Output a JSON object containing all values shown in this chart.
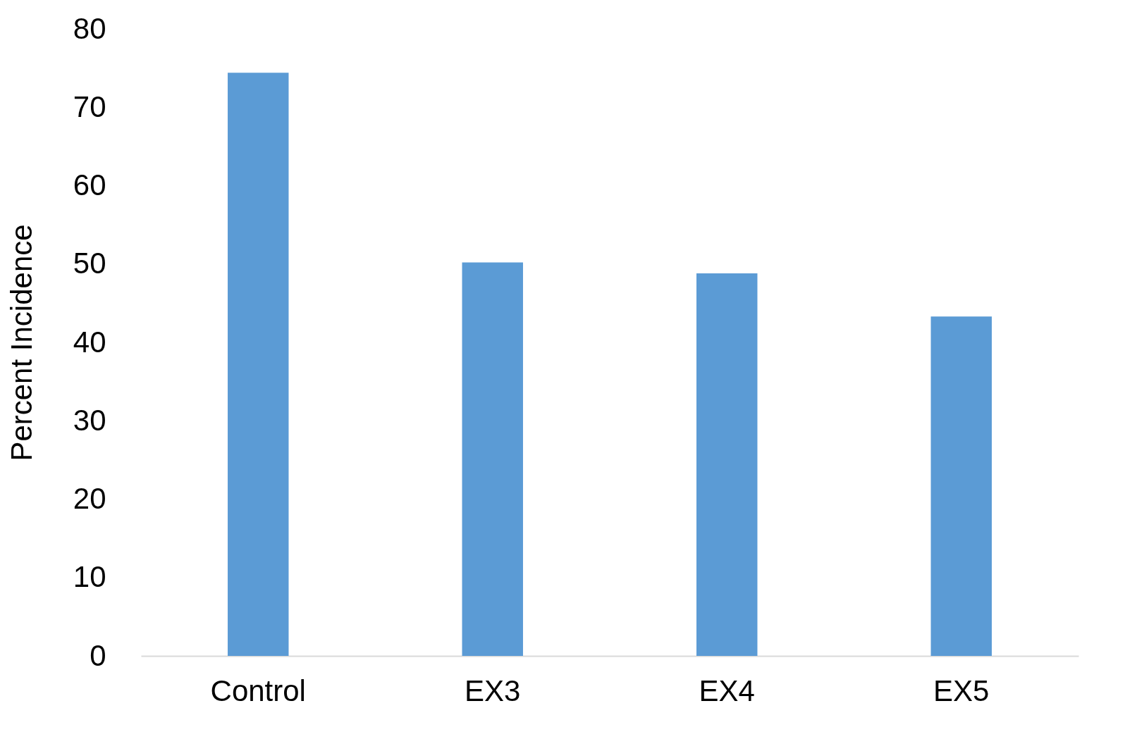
{
  "chart_data": {
    "type": "bar",
    "ylabel": "Percent Incidence",
    "categories": [
      "Control",
      "EX3",
      "EX4",
      "EX5"
    ],
    "values": [
      74.4,
      50.2,
      48.8,
      43.3
    ],
    "color": "#5b9bd5",
    "ylim": [
      0,
      80
    ],
    "yticks": [
      0,
      10,
      20,
      30,
      40,
      50,
      60,
      70,
      80
    ],
    "grid": false
  }
}
